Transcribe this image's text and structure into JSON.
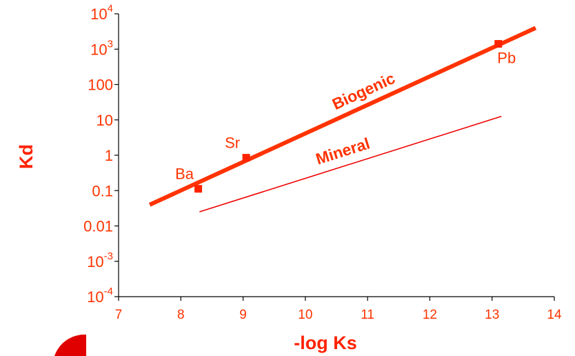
{
  "chart_data": {
    "type": "line",
    "title": "",
    "xlabel": "-log Ks",
    "ylabel": "Kd",
    "xlim": [
      7,
      14
    ],
    "ylim": [
      -4,
      4
    ],
    "x_ticks": [
      "7",
      "8",
      "9",
      "10",
      "11",
      "12",
      "13",
      "14"
    ],
    "y_ticks": [
      {
        "value": 4,
        "base": "10",
        "exp": "4"
      },
      {
        "value": 3,
        "base": "10",
        "exp": "3"
      },
      {
        "value": 2,
        "label": "100"
      },
      {
        "value": 1,
        "label": "10"
      },
      {
        "value": 0,
        "label": "1"
      },
      {
        "value": -1,
        "label": "0.1"
      },
      {
        "value": -2,
        "label": "0.01"
      },
      {
        "value": -3,
        "base": "10",
        "exp": "-3"
      },
      {
        "value": -4,
        "base": "10",
        "exp": "-4"
      }
    ],
    "y_scale": "log",
    "grid": false,
    "series": [
      {
        "name": "Biogenic",
        "x": [
          7.5,
          13.7
        ],
        "log_y": [
          -1.4,
          3.6
        ],
        "color": "#ff3300"
      },
      {
        "name": "Mineral",
        "x": [
          8.3,
          13.15
        ],
        "log_y": [
          -1.6,
          1.1
        ],
        "color": "#ee0000"
      }
    ],
    "points": [
      {
        "label": "Ba",
        "x": 8.28,
        "log_y": -0.95
      },
      {
        "label": "Sr",
        "x": 9.05,
        "log_y": -0.07
      },
      {
        "label": "Pb",
        "x": 13.1,
        "log_y": 3.15
      }
    ],
    "colors": {
      "accent": "#ff3300",
      "axis": "#000000"
    }
  }
}
